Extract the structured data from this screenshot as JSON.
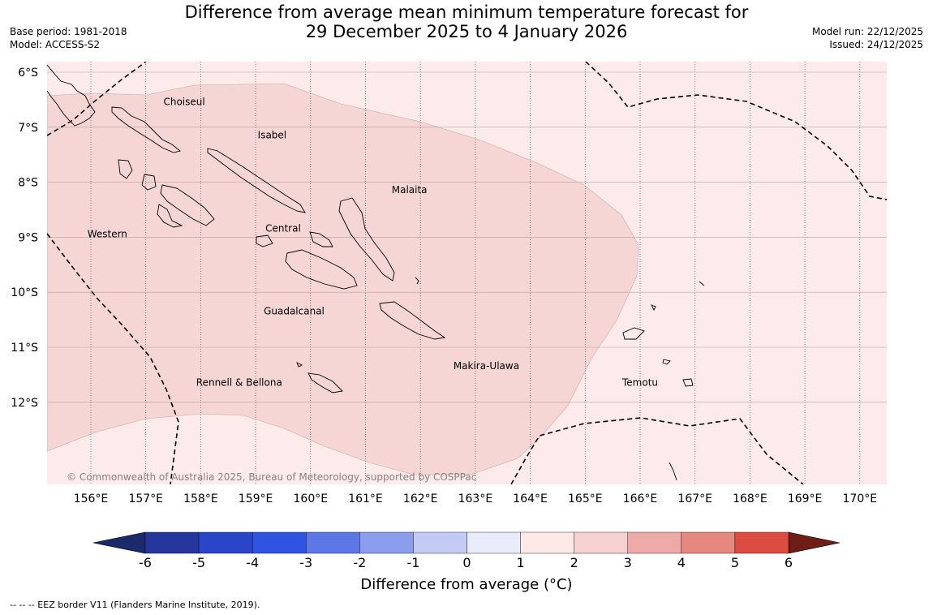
{
  "title_line1": "Difference from average mean minimum temperature forecast for",
  "title_line2": "29 December 2025 to 4 January 2026",
  "base_period": "Base period: 1981-2018",
  "model": "Model: ACCESS-S2",
  "model_run": "Model run: 22/12/2025",
  "issued": "Issued: 24/12/2025",
  "copyright": "© Commonwealth of Australia 2025, Bureau of Meteorology, supported by COSPPac",
  "lon_labels": [
    "156°E",
    "157°E",
    "158°E",
    "159°E",
    "160°E",
    "161°E",
    "162°E",
    "163°E",
    "164°E",
    "165°E",
    "166°E",
    "167°E",
    "168°E",
    "169°E",
    "170°E"
  ],
  "lat_labels": [
    "6°S",
    "7°S",
    "8°S",
    "9°S",
    "10°S",
    "11°S",
    "12°S"
  ],
  "places": [
    {
      "name": "Choiseul",
      "lon": 157.7,
      "lat": -6.6
    },
    {
      "name": "Isabel",
      "lon": 159.3,
      "lat": -7.2
    },
    {
      "name": "Malaita",
      "lon": 161.8,
      "lat": -8.2
    },
    {
      "name": "Central",
      "lon": 159.5,
      "lat": -8.9
    },
    {
      "name": "Western",
      "lon": 156.3,
      "lat": -9.0
    },
    {
      "name": "Guadalcanal",
      "lon": 159.7,
      "lat": -10.4
    },
    {
      "name": "Makira-Ulawa",
      "lon": 163.2,
      "lat": -11.4
    },
    {
      "name": "Rennell & Bellona",
      "lon": 158.7,
      "lat": -11.7
    },
    {
      "name": "Temotu",
      "lon": 166.0,
      "lat": -11.7
    }
  ],
  "colorbar": {
    "title": "Difference from average (°C)",
    "tick_labels": [
      "-6",
      "-5",
      "-4",
      "-3",
      "-2",
      "-1",
      "0",
      "1",
      "2",
      "3",
      "4",
      "5",
      "6"
    ],
    "colors": [
      "#25369c",
      "#2b45c9",
      "#2f54e2",
      "#5e77e6",
      "#8b9ded",
      "#c3caf4",
      "#e8ecfb",
      "#fce9e8",
      "#f6d1d1",
      "#edaaa7",
      "#e78880",
      "#dc4c40",
      "#a92a22"
    ],
    "under_color": "#1c2a6c",
    "over_color": "#6e1d17"
  },
  "anomaly_fill_colors": {
    "background": "#fcebea",
    "region": "#f6d5d5"
  },
  "footer": "--  --  -- EEZ border V11 (Flanders Marine Institute, 2019)."
}
